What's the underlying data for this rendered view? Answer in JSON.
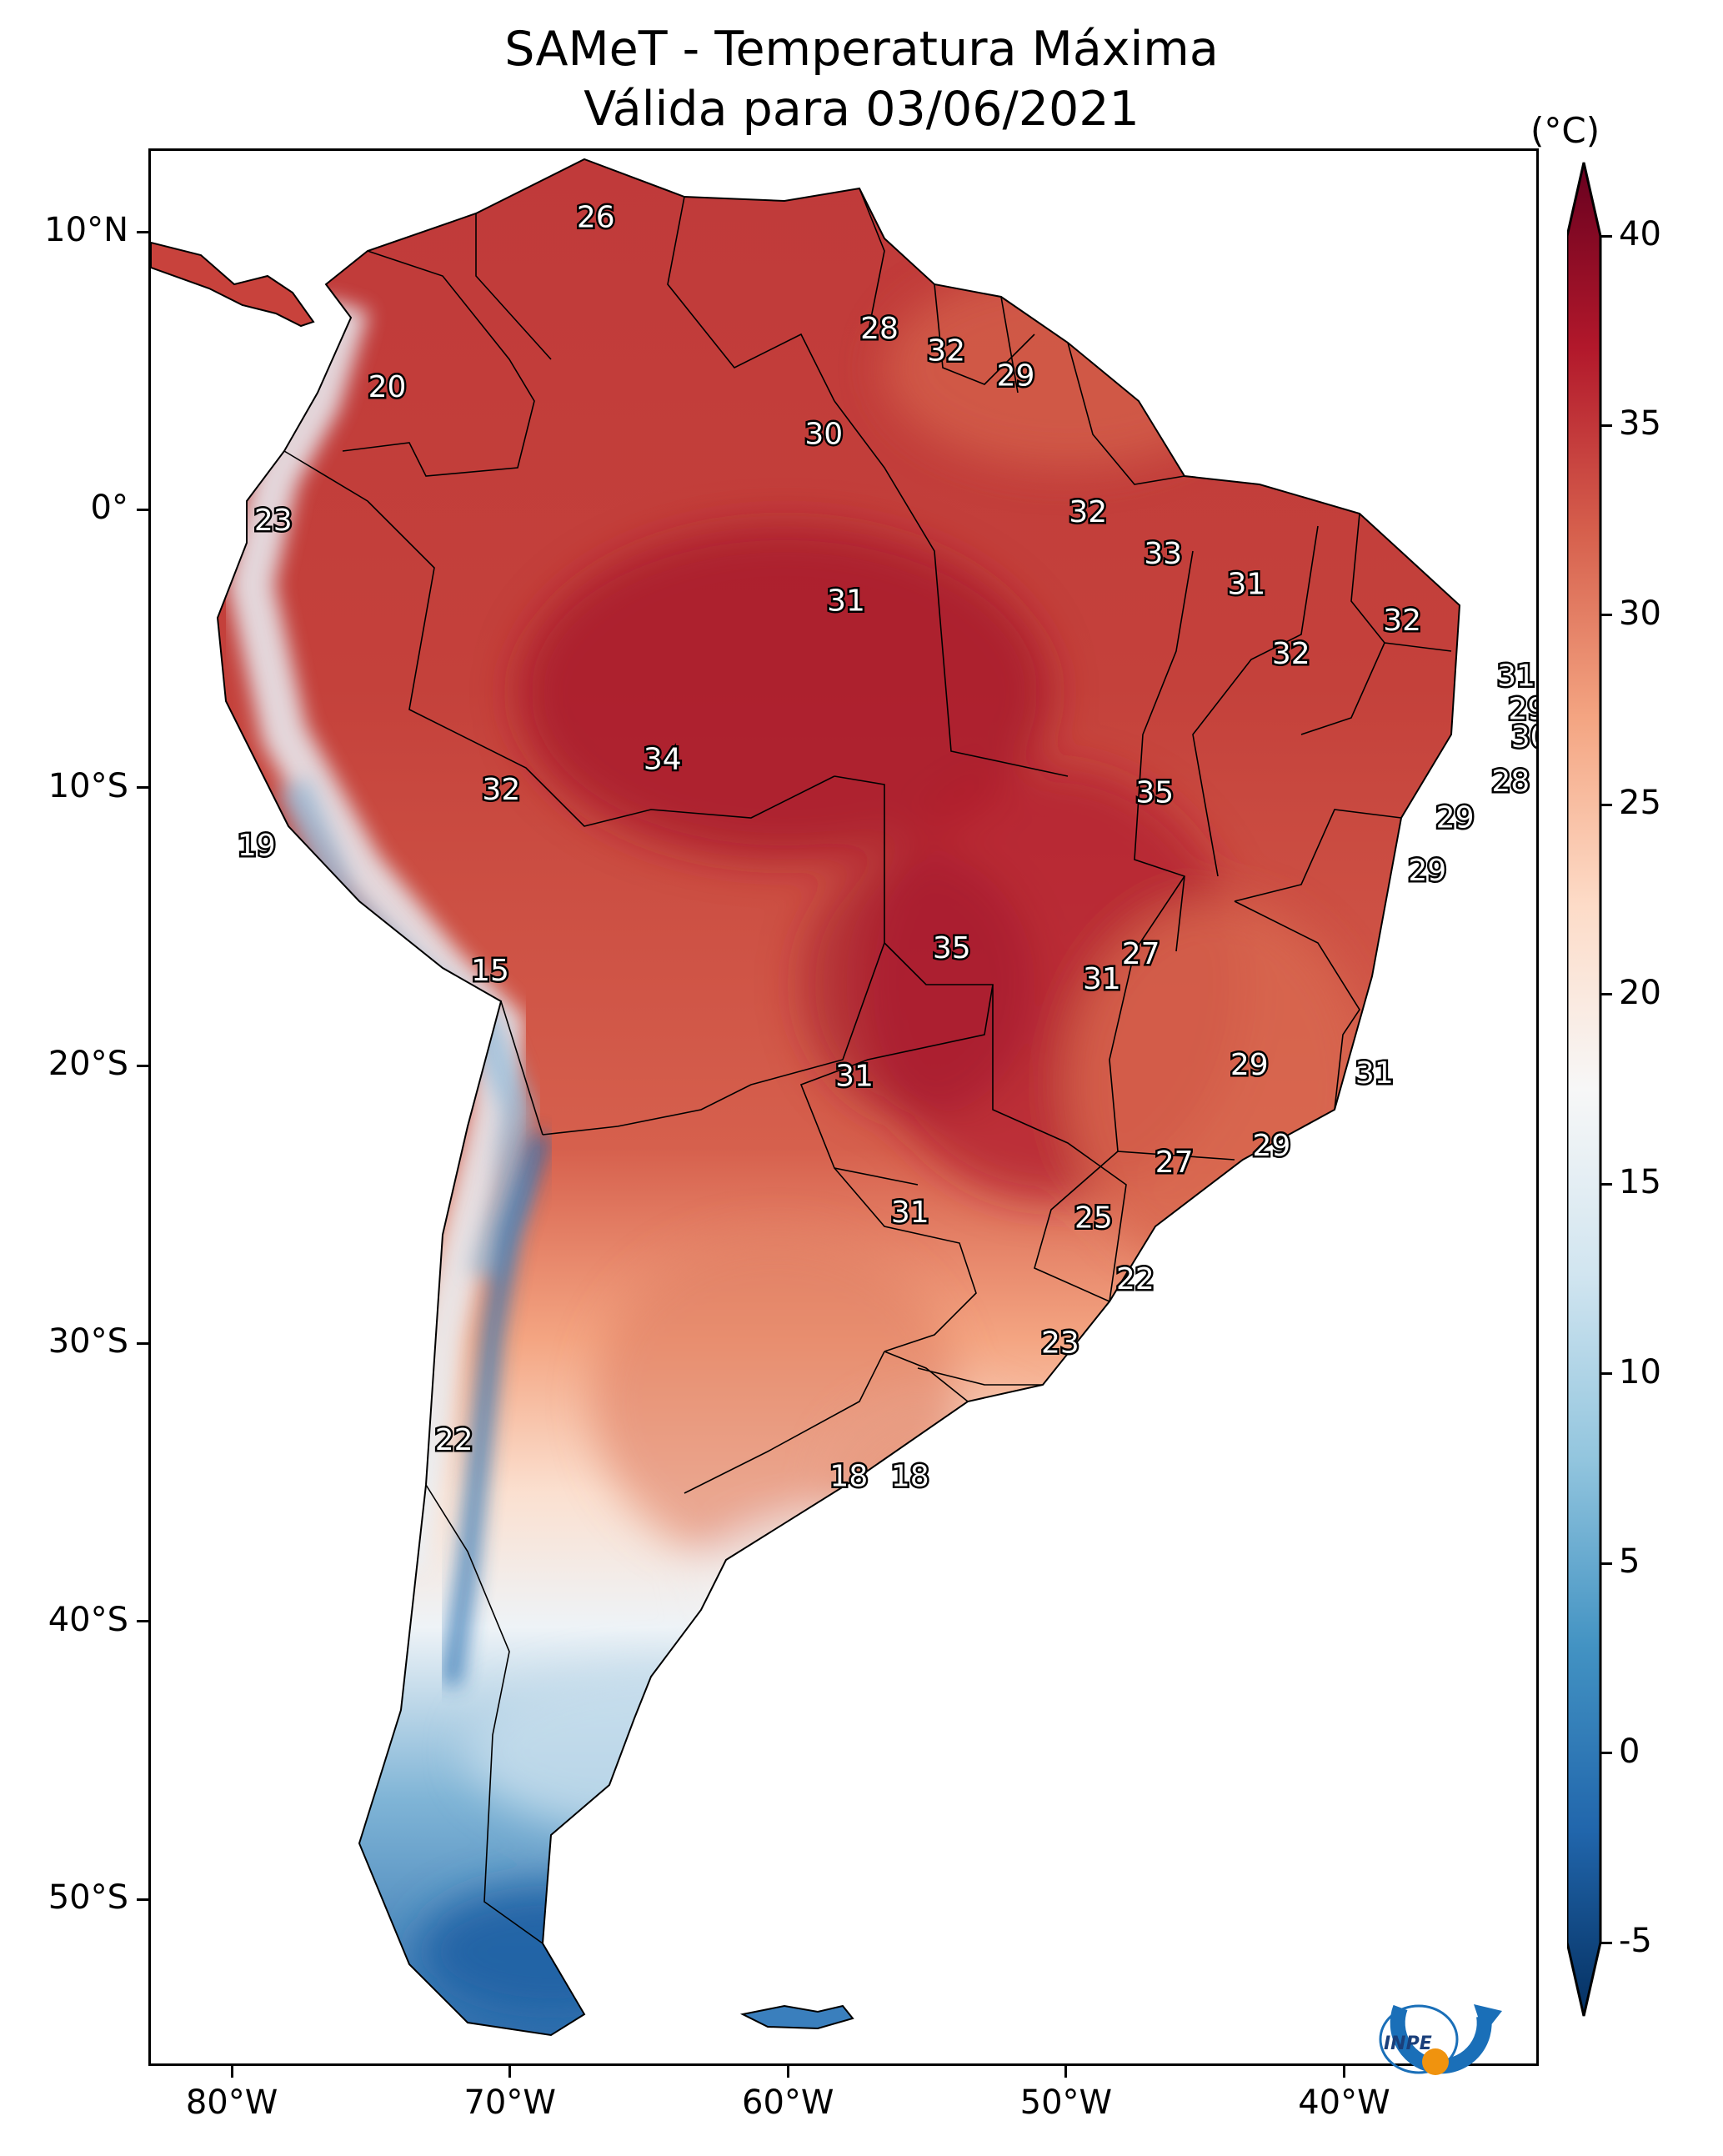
{
  "title": {
    "line1": "SAMeT - Temperatura Máxima",
    "line2": "Válida para 03/06/2021"
  },
  "map": {
    "lon_range": [
      -83,
      -33
    ],
    "lat_range": [
      -56,
      13
    ],
    "lon_ticks": [
      {
        "value": -80,
        "label": "80°W"
      },
      {
        "value": -70,
        "label": "70°W"
      },
      {
        "value": -60,
        "label": "60°W"
      },
      {
        "value": -50,
        "label": "50°W"
      },
      {
        "value": -40,
        "label": "40°W"
      }
    ],
    "lat_ticks": [
      {
        "value": 10,
        "label": "10°N"
      },
      {
        "value": 0,
        "label": "0°"
      },
      {
        "value": -10,
        "label": "10°S"
      },
      {
        "value": -20,
        "label": "20°S"
      },
      {
        "value": -30,
        "label": "30°S"
      },
      {
        "value": -40,
        "label": "40°S"
      },
      {
        "value": -50,
        "label": "50°S"
      }
    ],
    "temperature_labels": [
      {
        "lon": -67.0,
        "lat": 10.6,
        "value": "26"
      },
      {
        "lon": -56.8,
        "lat": 6.6,
        "value": "28"
      },
      {
        "lon": -54.4,
        "lat": 5.8,
        "value": "32"
      },
      {
        "lon": -51.9,
        "lat": 4.9,
        "value": "29"
      },
      {
        "lon": -74.5,
        "lat": 4.5,
        "value": "20"
      },
      {
        "lon": -58.8,
        "lat": 2.8,
        "value": "30"
      },
      {
        "lon": -78.6,
        "lat": -0.3,
        "value": "23"
      },
      {
        "lon": -49.3,
        "lat": 0.0,
        "value": "32"
      },
      {
        "lon": -46.6,
        "lat": -1.5,
        "value": "33"
      },
      {
        "lon": -43.6,
        "lat": -2.6,
        "value": "31"
      },
      {
        "lon": -58.0,
        "lat": -3.2,
        "value": "31"
      },
      {
        "lon": -38.0,
        "lat": -3.9,
        "value": "32"
      },
      {
        "lon": -42.0,
        "lat": -5.1,
        "value": "32"
      },
      {
        "lon": -33.9,
        "lat": -5.9,
        "value": "31"
      },
      {
        "lon": -33.5,
        "lat": -7.1,
        "value": "29"
      },
      {
        "lon": -33.4,
        "lat": -8.1,
        "value": "30"
      },
      {
        "lon": -64.6,
        "lat": -8.9,
        "value": "34"
      },
      {
        "lon": -34.1,
        "lat": -9.7,
        "value": "28"
      },
      {
        "lon": -70.4,
        "lat": -10.0,
        "value": "32"
      },
      {
        "lon": -46.9,
        "lat": -10.1,
        "value": "35"
      },
      {
        "lon": -36.1,
        "lat": -11.0,
        "value": "29"
      },
      {
        "lon": -79.2,
        "lat": -12.0,
        "value": "19"
      },
      {
        "lon": -37.1,
        "lat": -12.9,
        "value": "29"
      },
      {
        "lon": -54.2,
        "lat": -15.7,
        "value": "35"
      },
      {
        "lon": -47.4,
        "lat": -15.9,
        "value": "27"
      },
      {
        "lon": -48.8,
        "lat": -16.8,
        "value": "31"
      },
      {
        "lon": -70.8,
        "lat": -16.5,
        "value": "15"
      },
      {
        "lon": -43.5,
        "lat": -19.9,
        "value": "29"
      },
      {
        "lon": -39.0,
        "lat": -20.2,
        "value": "31"
      },
      {
        "lon": -57.7,
        "lat": -20.3,
        "value": "31"
      },
      {
        "lon": -42.7,
        "lat": -22.8,
        "value": "29"
      },
      {
        "lon": -46.2,
        "lat": -23.4,
        "value": "27"
      },
      {
        "lon": -49.1,
        "lat": -25.4,
        "value": "25"
      },
      {
        "lon": -55.7,
        "lat": -25.2,
        "value": "31"
      },
      {
        "lon": -47.6,
        "lat": -27.6,
        "value": "22"
      },
      {
        "lon": -50.3,
        "lat": -29.9,
        "value": "23"
      },
      {
        "lon": -72.1,
        "lat": -33.4,
        "value": "22"
      },
      {
        "lon": -57.9,
        "lat": -34.7,
        "value": "18"
      },
      {
        "lon": -55.7,
        "lat": -34.7,
        "value": "18"
      }
    ]
  },
  "colorbar": {
    "unit": "(°C)",
    "min": -5,
    "max": 40,
    "ticks": [
      {
        "value": 40,
        "label": "40"
      },
      {
        "value": 35,
        "label": "35"
      },
      {
        "value": 30,
        "label": "30"
      },
      {
        "value": 25,
        "label": "25"
      },
      {
        "value": 20,
        "label": "20"
      },
      {
        "value": 15,
        "label": "15"
      },
      {
        "value": 10,
        "label": "10"
      },
      {
        "value": 5,
        "label": "5"
      },
      {
        "value": 0,
        "label": "0"
      },
      {
        "value": -5,
        "label": "-5"
      }
    ],
    "colors": [
      "#053061",
      "#2166ac",
      "#4393c3",
      "#92c5de",
      "#d1e5f0",
      "#f7f7f7",
      "#fddbc7",
      "#f4a582",
      "#d6604d",
      "#b2182b",
      "#67001f"
    ]
  },
  "logo": {
    "text": "INPE"
  }
}
